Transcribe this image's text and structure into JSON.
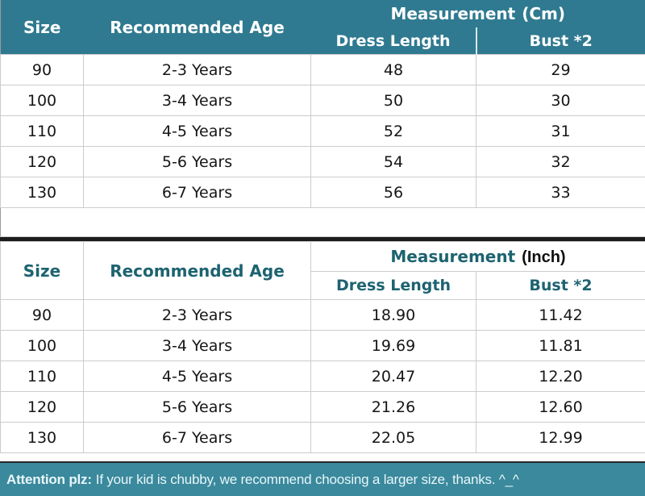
{
  "colors": {
    "header_teal": "#2f7a90",
    "bar_teal": "#3a899c",
    "teal_text": "#1d6370",
    "separator": "#1d1d1d"
  },
  "table_cm": {
    "header": {
      "size": "Size",
      "age": "Recommended Age",
      "measurement": "Measurement",
      "unit": "(Cm)",
      "col1": "Dress Length",
      "col2": "Bust *2"
    },
    "rows": [
      [
        "90",
        "2-3 Years",
        "48",
        "29"
      ],
      [
        "100",
        "3-4 Years",
        "50",
        "30"
      ],
      [
        "110",
        "4-5 Years",
        "52",
        "31"
      ],
      [
        "120",
        "5-6 Years",
        "54",
        "32"
      ],
      [
        "130",
        "6-7 Years",
        "56",
        "33"
      ]
    ]
  },
  "table_inch": {
    "header": {
      "size": "Size",
      "age": "Recommended Age",
      "measurement": "Measurement",
      "unit": "(Inch)",
      "col1": "Dress Length",
      "col2": "Bust *2"
    },
    "rows": [
      [
        "90",
        "2-3 Years",
        "18.90",
        "11.42"
      ],
      [
        "100",
        "3-4 Years",
        "19.69",
        "11.81"
      ],
      [
        "110",
        "4-5 Years",
        "20.47",
        "12.20"
      ],
      [
        "120",
        "5-6 Years",
        "21.26",
        "12.60"
      ],
      [
        "130",
        "6-7 Years",
        "22.05",
        "12.99"
      ]
    ]
  },
  "attention": {
    "label": "Attention plz:",
    "text": "If your kid is chubby, we recommend choosing a larger size, thanks. ^_^"
  }
}
